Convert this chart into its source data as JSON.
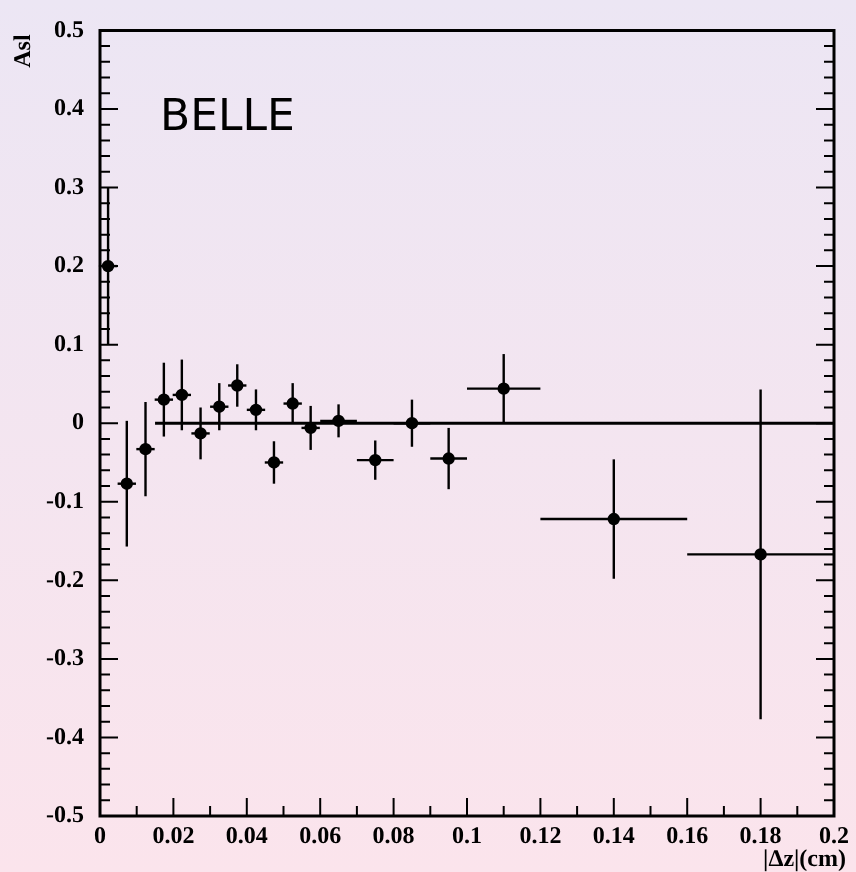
{
  "chart_data": {
    "type": "scatter",
    "xlabel": "|Δz|(cm)",
    "ylabel": "Asl",
    "annotations": [
      "BELLE"
    ],
    "xlim": [
      0,
      0.2
    ],
    "xticks": [
      0,
      0.02,
      0.04,
      0.06,
      0.08,
      0.1,
      0.12,
      0.14,
      0.16,
      0.18,
      0.2
    ],
    "ylim": [
      -0.5,
      0.5
    ],
    "yticks": [
      -0.5,
      -0.4,
      -0.3,
      -0.2,
      -0.1,
      0,
      0.1,
      0.2,
      0.3,
      0.4,
      0.5
    ],
    "grid": false,
    "legend": false,
    "marker": "circle",
    "series": [
      {
        "color": "#000000",
        "x": [
          0.0022,
          0.0073,
          0.0124,
          0.0174,
          0.0223,
          0.0274,
          0.0325,
          0.0374,
          0.0425,
          0.0474,
          0.0525,
          0.0574,
          0.065,
          0.075,
          0.085,
          0.095,
          0.11,
          0.14,
          0.18
        ],
        "values": [
          0.2,
          -0.077,
          -0.033,
          0.03,
          0.036,
          -0.013,
          0.021,
          0.048,
          0.017,
          -0.05,
          0.025,
          -0.006,
          0.003,
          -0.047,
          0,
          -0.045,
          0.044,
          -0.122,
          -0.167
        ],
        "errors": [
          0.1,
          0.08,
          0.06,
          0.047,
          0.045,
          0.033,
          0.03,
          0.027,
          0.026,
          0.027,
          0.026,
          0.028,
          0.021,
          0.025,
          0.03,
          0.039,
          0.044,
          0.076,
          0.21
        ],
        "xerrors": [
          0.0025,
          0.0025,
          0.0025,
          0.0025,
          0.0025,
          0.0025,
          0.0025,
          0.0025,
          0.0025,
          0.0025,
          0.0025,
          0.0025,
          0.005,
          0.005,
          0.005,
          0.005,
          0.01,
          0.02,
          0.02
        ]
      },
      {
        "type": "line",
        "color": "#000000",
        "x": [
          0.015,
          0.2
        ],
        "values": [
          0,
          0
        ],
        "marker": "none",
        "line_style": "solid"
      }
    ]
  }
}
